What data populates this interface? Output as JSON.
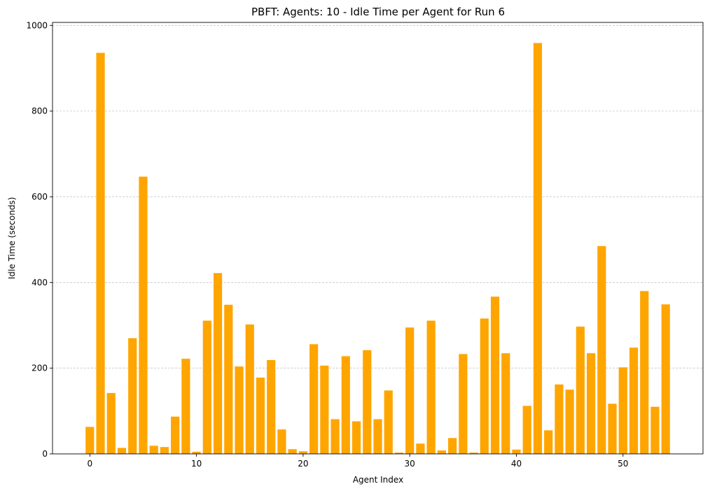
{
  "chart_data": {
    "type": "bar",
    "title": "PBFT: Agents: 10 - Idle Time per Agent for Run 6",
    "xlabel": "Agent Index",
    "ylabel": "Idle Time (seconds)",
    "xlim": [
      -3.5,
      57.5
    ],
    "ylim": [
      0,
      1007
    ],
    "x_ticks": [
      0,
      10,
      20,
      30,
      40,
      50
    ],
    "y_ticks": [
      0,
      200,
      400,
      600,
      800,
      1000
    ],
    "grid": "y-dashed",
    "bar_color": "#FFA500",
    "x": [
      0,
      1,
      2,
      3,
      4,
      5,
      6,
      7,
      8,
      9,
      10,
      11,
      12,
      13,
      14,
      15,
      16,
      17,
      18,
      19,
      20,
      21,
      22,
      23,
      24,
      25,
      26,
      27,
      28,
      29,
      30,
      31,
      32,
      33,
      34,
      35,
      36,
      37,
      38,
      39,
      40,
      41,
      42,
      43,
      44,
      45,
      46,
      47,
      48,
      49,
      50,
      51,
      52,
      53,
      54
    ],
    "values": [
      63,
      936,
      142,
      14,
      270,
      647,
      19,
      16,
      87,
      222,
      5,
      311,
      422,
      348,
      204,
      302,
      178,
      219,
      57,
      11,
      6,
      256,
      206,
      81,
      228,
      76,
      242,
      81,
      148,
      3,
      295,
      24,
      311,
      8,
      37,
      233,
      3,
      316,
      367,
      235,
      10,
      112,
      959,
      55,
      162,
      150,
      297,
      235,
      485,
      117,
      202,
      248,
      380,
      110,
      349
    ]
  }
}
